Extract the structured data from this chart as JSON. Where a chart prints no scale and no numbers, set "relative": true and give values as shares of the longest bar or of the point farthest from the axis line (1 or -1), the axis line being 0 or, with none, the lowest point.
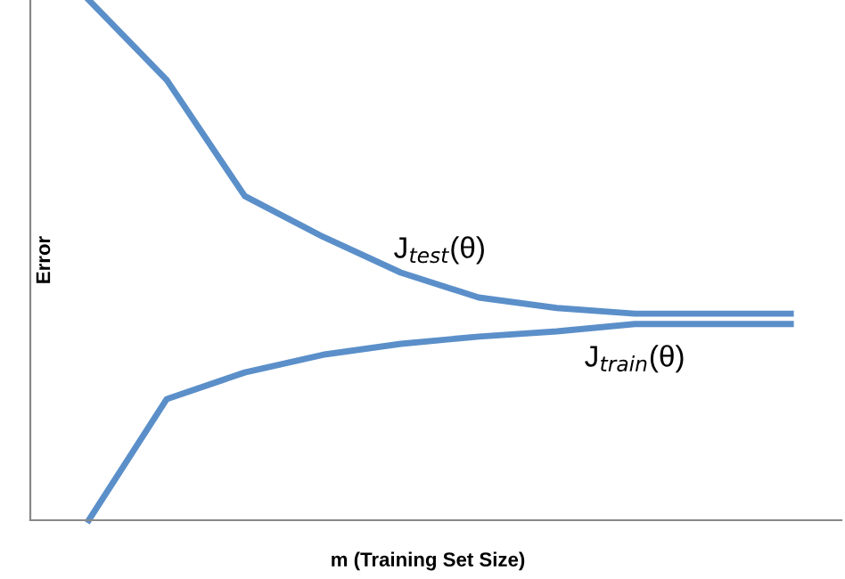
{
  "chart_data": {
    "type": "line",
    "relative": true,
    "xlabel": "m (Training Set Size)",
    "ylabel": "Error",
    "categories": [
      null,
      null,
      null,
      null,
      null,
      null,
      null,
      null,
      null,
      null
    ],
    "series": [
      {
        "name": "J$_{test}$(θ)",
        "color": "#5b8fc9",
        "values": [
          1,
          0.846,
          0.623,
          0.545,
          0.476,
          0.428,
          0.408,
          0.397,
          0.397,
          0.397
        ]
      },
      {
        "name": "J$_{train}$(θ)",
        "color": "#5b8fc9",
        "values": [
          0,
          0.233,
          0.284,
          0.318,
          0.339,
          0.353,
          0.363,
          0.377,
          0.377,
          0.377
        ]
      }
    ],
    "grid": false,
    "legend": false,
    "marker": "none",
    "line_style": "solid"
  }
}
